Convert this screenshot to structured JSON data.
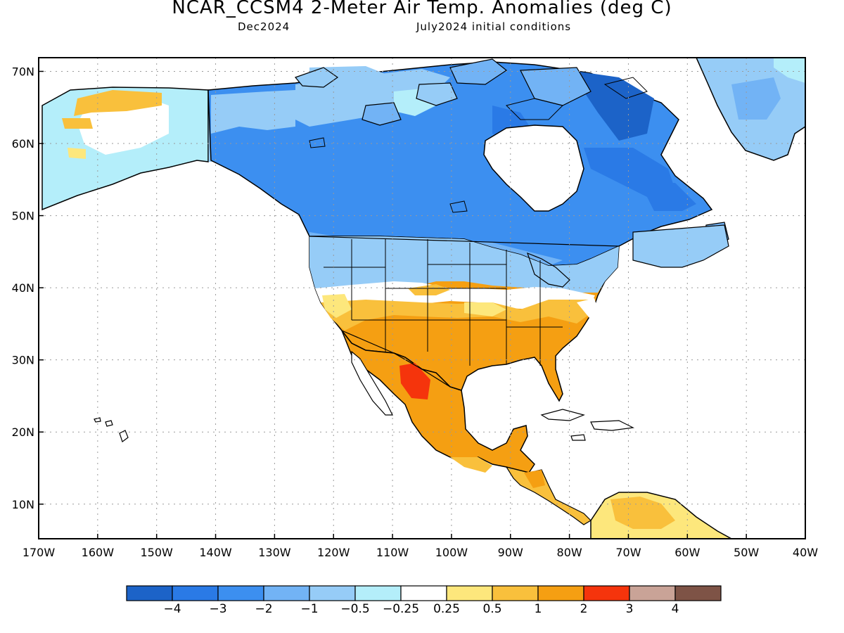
{
  "header": {
    "title": "NCAR_CCSM4 2-Meter Air Temp. Anomalies (deg C)",
    "left_subtitle": "Dec2024",
    "right_subtitle": "July2024 initial conditions"
  },
  "axes": {
    "lat_labels": [
      "70N",
      "60N",
      "50N",
      "40N",
      "30N",
      "20N",
      "10N"
    ],
    "lon_labels": [
      "170W",
      "160W",
      "150W",
      "140W",
      "130W",
      "120W",
      "110W",
      "100W",
      "90W",
      "80W",
      "70W",
      "60W",
      "50W",
      "40W"
    ]
  },
  "colorbar": {
    "colors": [
      "#1c63c8",
      "#2a7ae6",
      "#3c8ff0",
      "#72b3f5",
      "#96ccf7",
      "#b4eefa",
      "#ffffff",
      "#fde77c",
      "#f9c03c",
      "#f59f12",
      "#f5340c",
      "#c9a397",
      "#7e5346"
    ],
    "labels": [
      "−4",
      "−3",
      "−2",
      "−1",
      "−0.5",
      "−0.25",
      "0.25",
      "0.5",
      "1",
      "2",
      "3",
      "4"
    ]
  },
  "colors": {
    "ocean": "#ffffff",
    "outline": "#000000",
    "grid": "#9a9a9a"
  }
}
